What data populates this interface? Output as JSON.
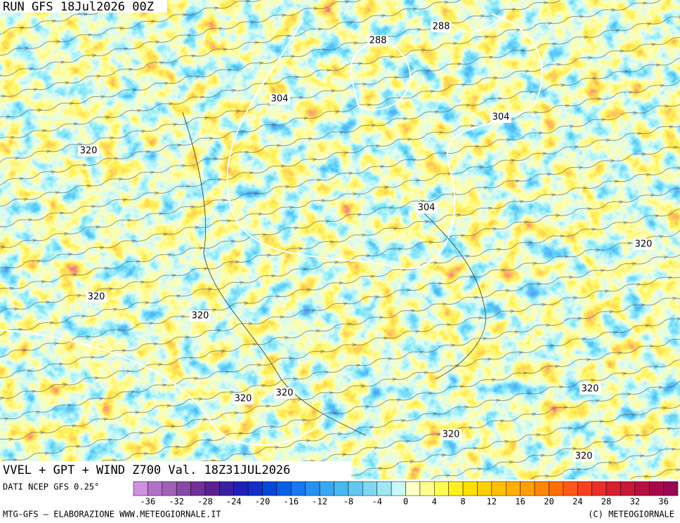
{
  "header": {
    "run": "RUN GFS 18Jul2026 00Z"
  },
  "map": {
    "contour_labels": [
      288,
      288,
      304,
      304,
      304,
      320,
      320,
      320,
      320,
      320,
      320,
      320,
      320,
      320
    ]
  },
  "title": "VVEL + GPT + WIND Z700 Val. 18Z31JUL2026",
  "legend": {
    "source": "DATI NCEP GFS 0.25°",
    "ticks": [
      -36,
      -32,
      -28,
      -24,
      -20,
      -16,
      -12,
      -8,
      -4,
      0,
      4,
      8,
      12,
      16,
      20,
      24,
      28,
      32,
      36
    ]
  },
  "footer": {
    "left": "MTG-GFS — ELABORAZIONE WWW.METEOGIORNALE.IT",
    "right": "(C) METEOGIORNALE"
  }
}
